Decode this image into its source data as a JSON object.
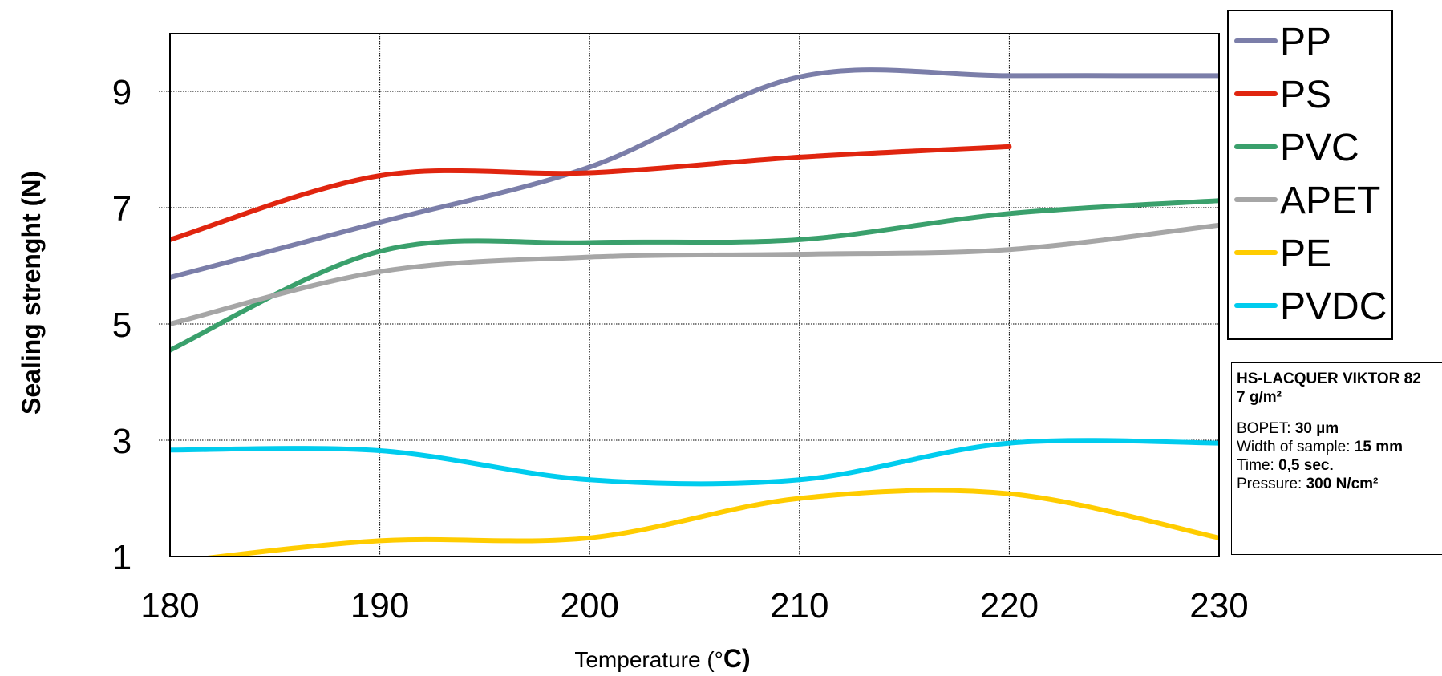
{
  "chart_data": {
    "type": "line",
    "xlabel": "Temperature (°",
    "xlabel_unit": "C)",
    "ylabel": "Sealing strenght (N)",
    "xlim": [
      180,
      230
    ],
    "ylim": [
      1,
      10
    ],
    "xticks": [
      "180",
      "190",
      "200",
      "210",
      "220",
      "230"
    ],
    "yticks": [
      "1",
      "3",
      "5",
      "7",
      "9"
    ],
    "grid": true,
    "legend_position": "right",
    "series": [
      {
        "name": "PP",
        "color": "#7b7ea9",
        "x": [
          180,
          190,
          200,
          210,
          220,
          230
        ],
        "y": [
          5.8,
          6.75,
          7.7,
          9.25,
          9.27,
          9.27
        ]
      },
      {
        "name": "PS",
        "color": "#e0250f",
        "x": [
          180,
          190,
          200,
          210,
          220
        ],
        "y": [
          6.45,
          7.55,
          7.6,
          7.87,
          8.05
        ]
      },
      {
        "name": "PVC",
        "color": "#3aa06c",
        "x": [
          180,
          190,
          200,
          210,
          220,
          230
        ],
        "y": [
          4.55,
          6.25,
          6.4,
          6.45,
          6.9,
          7.12
        ]
      },
      {
        "name": "APET",
        "color": "#a6a6a6",
        "x": [
          180,
          190,
          200,
          210,
          220,
          230
        ],
        "y": [
          5.0,
          5.9,
          6.15,
          6.2,
          6.28,
          6.7
        ]
      },
      {
        "name": "PE",
        "color": "#ffcc00",
        "x": [
          180,
          190,
          200,
          210,
          220,
          230
        ],
        "y": [
          0.9,
          1.27,
          1.32,
          2.0,
          2.08,
          1.32
        ]
      },
      {
        "name": "PVDC",
        "color": "#00ccee",
        "x": [
          180,
          190,
          200,
          210,
          220,
          230
        ],
        "y": [
          2.83,
          2.82,
          2.32,
          2.32,
          2.95,
          2.95
        ]
      }
    ]
  },
  "info": {
    "title": "HS-LACQUER VIKTOR 82",
    "weight": "7 g/m²",
    "rows": [
      {
        "label": "BOPET: ",
        "value": "30 µm"
      },
      {
        "label": "Width of sample: ",
        "value": "15 mm"
      },
      {
        "label": "Time: ",
        "value": "0,5 sec."
      },
      {
        "label": "Pressure: ",
        "value": "300 N/cm²"
      }
    ]
  }
}
